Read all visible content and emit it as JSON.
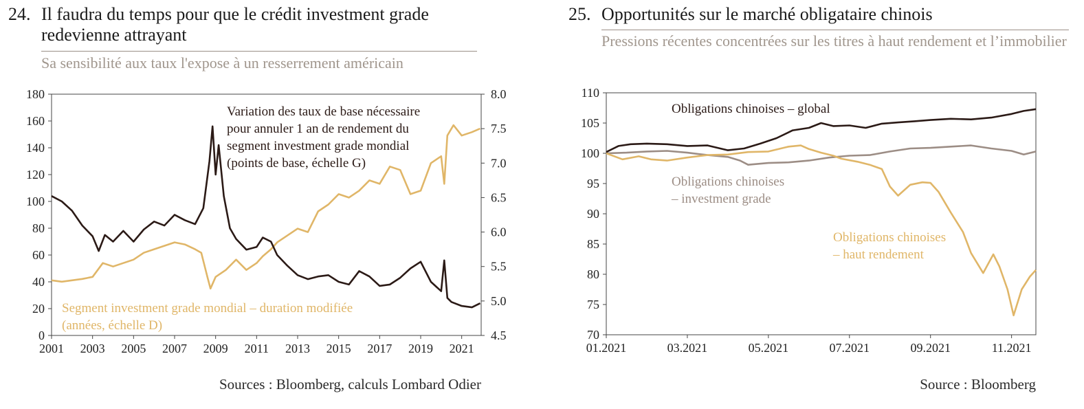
{
  "colors": {
    "dark": "#2b1a16",
    "gold": "#e0b668",
    "taupe": "#9c8d85"
  },
  "panels": [
    {
      "number": "24.",
      "title": "Il faudra du temps pour que le crédit investment grade redevienne attrayant",
      "subtitle": "Sa sensibilité aux taux l'expose à un resserrement américain",
      "source": "Sources : Bloomberg, calculs Lombard Odier"
    },
    {
      "number": "25.",
      "title": "Opportunités sur le marché obligataire chinois",
      "subtitle": "Pressions récentes concentrées sur les titres à haut rendement et l’immobilier",
      "source": "Source : Bloomberg"
    }
  ],
  "chart_data": [
    {
      "type": "line",
      "x_ticks": [
        "2001",
        "2003",
        "2005",
        "2007",
        "2009",
        "2011",
        "2013",
        "2015",
        "2017",
        "2019",
        "2021"
      ],
      "xlim": [
        2001,
        2021.95
      ],
      "ylim_left": [
        0,
        180
      ],
      "y_ticks_left": [
        "0",
        "20",
        "40",
        "60",
        "80",
        "100",
        "120",
        "140",
        "160",
        "180"
      ],
      "ylim_right": [
        4.5,
        8.0
      ],
      "y_ticks_right": [
        "4.5",
        "5.0",
        "5.5",
        "6.0",
        "6.5",
        "7.0",
        "7.5",
        "8.0"
      ],
      "grid": false,
      "series": [
        {
          "name": "Variation des taux de base nécessaire pour annuler 1 an de rendement du segment investment grade mondial (points de base, échelle G)",
          "label_lines": [
            "Variation des taux de base nécessaire",
            "pour annuler 1 an de rendement du",
            "segment investment grade mondial",
            "(points de base, échelle G)"
          ],
          "axis": "left",
          "color": "#2b1a16",
          "x": [
            2001,
            2001.5,
            2002,
            2002.5,
            2003,
            2003.3,
            2003.6,
            2004,
            2004.5,
            2005,
            2005.5,
            2006,
            2006.5,
            2007,
            2007.5,
            2008,
            2008.4,
            2008.7,
            2008.85,
            2009,
            2009.15,
            2009.4,
            2009.7,
            2010,
            2010.5,
            2011,
            2011.3,
            2011.7,
            2012,
            2012.5,
            2013,
            2013.5,
            2014,
            2014.5,
            2015,
            2015.5,
            2016,
            2016.5,
            2017,
            2017.5,
            2018,
            2018.5,
            2019,
            2019.5,
            2020,
            2020.15,
            2020.3,
            2020.5,
            2021,
            2021.5,
            2021.9
          ],
          "y": [
            104,
            100,
            93,
            82,
            74,
            63,
            75,
            70,
            78,
            70,
            79,
            85,
            82,
            90,
            86,
            83,
            95,
            130,
            156,
            120,
            142,
            104,
            80,
            72,
            64,
            66,
            73,
            70,
            60,
            52,
            45,
            42,
            44,
            45,
            40,
            38,
            48,
            44,
            37,
            38,
            43,
            50,
            55,
            40,
            33,
            56,
            28,
            25,
            22,
            21,
            24
          ]
        },
        {
          "name": "Segment investment grade mondial – duration modifiée (années, échelle D)",
          "label_lines": [
            "Segment investment grade mondial – duration modifiée",
            "(années, échelle D)"
          ],
          "axis": "right",
          "color": "#e0b668",
          "x": [
            2001,
            2001.5,
            2002,
            2002.5,
            2003,
            2003.5,
            2004,
            2004.5,
            2005,
            2005.5,
            2006,
            2006.5,
            2007,
            2007.5,
            2008,
            2008.3,
            2008.6,
            2008.75,
            2009,
            2009.5,
            2010,
            2010.5,
            2011,
            2011.3,
            2011.7,
            2012,
            2012.5,
            2013,
            2013.5,
            2014,
            2014.5,
            2015,
            2015.5,
            2016,
            2016.5,
            2017,
            2017.5,
            2018,
            2018.5,
            2019,
            2019.5,
            2020,
            2020.15,
            2020.3,
            2020.6,
            2021,
            2021.5,
            2021.9
          ],
          "y": [
            5.3,
            5.28,
            5.3,
            5.32,
            5.35,
            5.55,
            5.5,
            5.55,
            5.6,
            5.7,
            5.75,
            5.8,
            5.85,
            5.82,
            5.75,
            5.7,
            5.35,
            5.18,
            5.35,
            5.45,
            5.6,
            5.45,
            5.55,
            5.65,
            5.75,
            5.85,
            5.95,
            6.05,
            6.0,
            6.3,
            6.4,
            6.55,
            6.5,
            6.6,
            6.75,
            6.7,
            6.95,
            6.9,
            6.55,
            6.6,
            7.0,
            7.1,
            6.7,
            7.4,
            7.55,
            7.4,
            7.45,
            7.5
          ]
        }
      ]
    },
    {
      "type": "line",
      "x_ticks": [
        "01.2021",
        "03.2021",
        "05.2021",
        "07.2021",
        "09.2021",
        "11.2021"
      ],
      "xlim": [
        0,
        10.6
      ],
      "ylim": [
        70,
        110
      ],
      "y_ticks": [
        "70",
        "75",
        "80",
        "85",
        "90",
        "95",
        "100",
        "105",
        "110"
      ],
      "grid": false,
      "series": [
        {
          "name": "Obligations chinoises – global",
          "label_lines": [
            "Obligations chinoises – global"
          ],
          "color": "#2b1a16",
          "x": [
            0,
            0.3,
            0.6,
            1,
            1.5,
            2,
            2.5,
            3,
            3.4,
            3.8,
            4.2,
            4.6,
            5,
            5.3,
            5.6,
            6,
            6.4,
            6.8,
            7.2,
            7.6,
            8,
            8.5,
            9,
            9.5,
            10,
            10.3,
            10.6
          ],
          "y": [
            100.2,
            101.2,
            101.5,
            101.6,
            101.5,
            101.2,
            101.3,
            100.5,
            100.8,
            101.6,
            102.5,
            103.8,
            104.2,
            105,
            104.5,
            104.6,
            104.2,
            104.9,
            105.1,
            105.3,
            105.5,
            105.7,
            105.6,
            105.9,
            106.5,
            107,
            107.3
          ]
        },
        {
          "name": "Obligations chinoises – investment grade",
          "label_lines": [
            "Obligations chinoises",
            "– investment grade"
          ],
          "color": "#9c8d85",
          "x": [
            0,
            0.5,
            1,
            1.5,
            2,
            2.5,
            3,
            3.3,
            3.5,
            4,
            4.5,
            5,
            5.5,
            6,
            6.5,
            7,
            7.5,
            8,
            8.5,
            9,
            9.5,
            10,
            10.3,
            10.6
          ],
          "y": [
            100,
            100.1,
            100.3,
            100.4,
            100.1,
            99.7,
            99.4,
            98.8,
            98.1,
            98.4,
            98.5,
            98.8,
            99.3,
            99.6,
            99.7,
            100.3,
            100.8,
            100.9,
            101.1,
            101.3,
            100.8,
            100.4,
            99.8,
            100.3
          ]
        },
        {
          "name": "Obligations chinoises – haut rendement",
          "label_lines": [
            "Obligations chinoises",
            "– haut rendement"
          ],
          "color": "#e0b668",
          "x": [
            0,
            0.4,
            0.8,
            1.1,
            1.5,
            2,
            2.5,
            3,
            3.5,
            4,
            4.5,
            4.8,
            5,
            5.3,
            5.6,
            5.8,
            6.2,
            6.5,
            6.8,
            7,
            7.2,
            7.5,
            7.8,
            8,
            8.2,
            8.5,
            8.8,
            9,
            9.3,
            9.55,
            9.7,
            9.9,
            10.05,
            10.25,
            10.45,
            10.6
          ],
          "y": [
            100,
            99,
            99.5,
            99,
            98.8,
            99.3,
            99.7,
            99.8,
            100.2,
            100.3,
            101.1,
            101.3,
            100.7,
            100.1,
            99.6,
            99.1,
            98.6,
            98.1,
            97.4,
            94.5,
            93,
            94.8,
            95.2,
            95.1,
            93.6,
            90.2,
            87,
            83.5,
            80.2,
            83.3,
            81.3,
            77.5,
            73.2,
            77.5,
            79.6,
            80.7
          ]
        }
      ]
    }
  ]
}
